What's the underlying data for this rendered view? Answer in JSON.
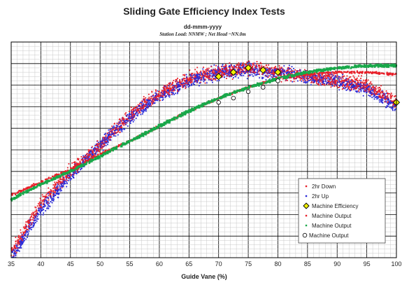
{
  "chart_data": {
    "type": "scatter",
    "title": "Sliding Gate Efficiency Index Tests",
    "subtitle": "dd-mmm-yyyy",
    "subtitle2": "Station Load: NNMW ; Net Head ~NN.0m",
    "xlabel": "Guide Vane (%)",
    "ylabel": "",
    "xlim": [
      35,
      100
    ],
    "ylim": [
      0,
      1
    ],
    "x_ticks": [
      35,
      40,
      45,
      50,
      55,
      60,
      65,
      70,
      75,
      80,
      85,
      90,
      95,
      100
    ],
    "y_tick_labels_visible": false,
    "grid": true,
    "legend_position": "bottom-right",
    "series": [
      {
        "name": "2hr Down",
        "marker": "dot",
        "color": "#e8202a",
        "x": [
          35,
          40,
          45,
          50,
          55,
          60,
          65,
          70,
          75,
          80,
          85,
          90,
          95,
          100
        ],
        "y": [
          0.02,
          0.25,
          0.4,
          0.52,
          0.66,
          0.76,
          0.83,
          0.86,
          0.88,
          0.86,
          0.84,
          0.82,
          0.8,
          0.72
        ]
      },
      {
        "name": "2hr Up",
        "marker": "dot",
        "color": "#2a2ad8",
        "x": [
          35,
          40,
          45,
          50,
          55,
          60,
          65,
          70,
          75,
          80,
          85,
          90,
          95,
          100
        ],
        "y": [
          0.0,
          0.22,
          0.38,
          0.52,
          0.65,
          0.75,
          0.82,
          0.86,
          0.87,
          0.86,
          0.84,
          0.82,
          0.78,
          0.7
        ]
      },
      {
        "name": "Machine Efficiency",
        "marker": "diamond",
        "color": "#f0f000",
        "x": [
          70,
          72.5,
          75,
          77.5,
          80,
          100
        ],
        "y": [
          0.84,
          0.86,
          0.88,
          0.87,
          0.86,
          0.72
        ]
      },
      {
        "name": "Machine Output",
        "marker": "dot",
        "color": "#e8202a",
        "x": [
          35,
          40,
          45,
          50,
          55,
          60,
          65,
          70,
          75,
          80,
          85,
          90,
          95,
          100
        ],
        "y": [
          0.29,
          0.35,
          0.41,
          0.48,
          0.54,
          0.61,
          0.68,
          0.74,
          0.79,
          0.83,
          0.85,
          0.86,
          0.86,
          0.85
        ]
      },
      {
        "name": "Machine Output",
        "marker": "dot",
        "color": "#19a84a",
        "x": [
          35,
          40,
          45,
          50,
          55,
          60,
          65,
          70,
          75,
          80,
          85,
          90,
          95,
          100
        ],
        "y": [
          0.27,
          0.34,
          0.4,
          0.47,
          0.54,
          0.61,
          0.68,
          0.74,
          0.79,
          0.83,
          0.86,
          0.88,
          0.89,
          0.89
        ]
      },
      {
        "name": "Machine Output",
        "marker": "circle",
        "color": "#ffffff",
        "x": [
          70,
          72.5,
          75,
          77.5,
          80
        ],
        "y": [
          0.72,
          0.74,
          0.77,
          0.79,
          0.82
        ]
      }
    ]
  }
}
